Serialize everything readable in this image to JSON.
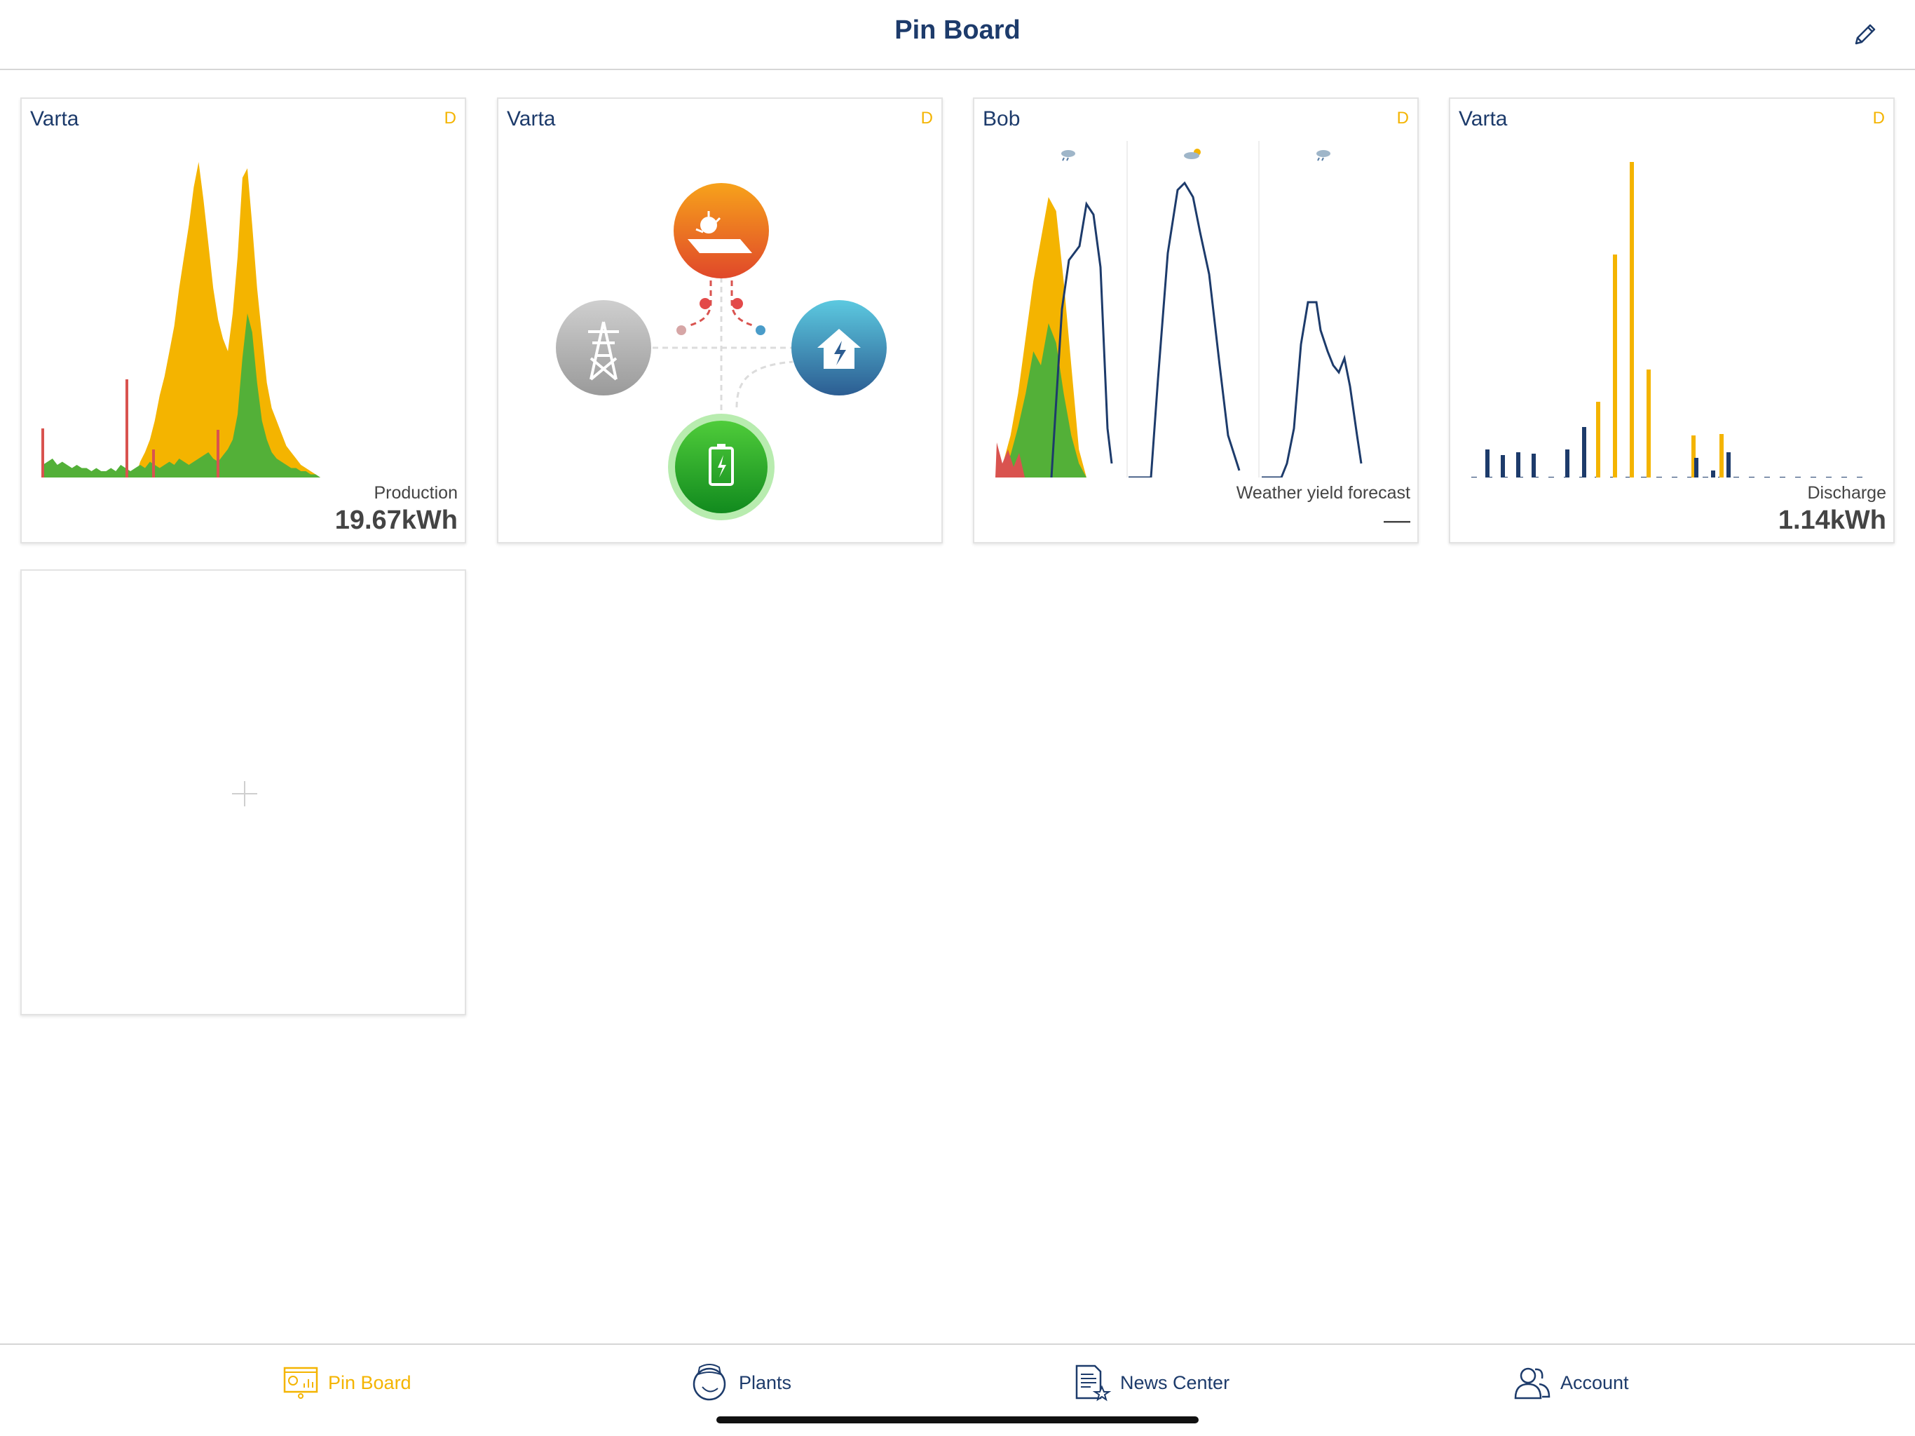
{
  "header": {
    "title": "Pin Board"
  },
  "cards": [
    {
      "title": "Varta",
      "badge": "D",
      "label": "Production",
      "value": "19.67kWh",
      "chart_data": {
        "type": "area",
        "series": [
          {
            "color": "#d9534f",
            "values": [
              2,
              1,
              0,
              0,
              0,
              0,
              0,
              0,
              0,
              0,
              0,
              0,
              0,
              0,
              0,
              0,
              0,
              0,
              0,
              0,
              0,
              0,
              0,
              0,
              0,
              0,
              0,
              0,
              0,
              0,
              0,
              0,
              0,
              0,
              0,
              0,
              0,
              0,
              0,
              0,
              0,
              0,
              0,
              0,
              0,
              0,
              0,
              0,
              0,
              0,
              0,
              0,
              0,
              0,
              0,
              0,
              0,
              0,
              0,
              0
            ]
          },
          {
            "color": "#f4b400",
            "values": [
              0,
              0,
              0,
              0,
              0,
              0,
              0,
              0,
              0,
              0,
              0,
              0,
              0,
              0,
              0,
              0,
              0,
              0,
              0,
              0,
              5,
              8,
              12,
              18,
              26,
              32,
              40,
              48,
              60,
              70,
              80,
              92,
              100,
              88,
              74,
              60,
              50,
              44,
              40,
              52,
              70,
              95,
              98,
              80,
              60,
              45,
              30,
              22,
              18,
              14,
              10,
              8,
              6,
              4,
              3,
              2,
              1,
              0,
              0,
              0
            ]
          },
          {
            "color": "#53b038",
            "values": [
              4,
              5,
              6,
              4,
              5,
              4,
              3,
              4,
              3,
              3,
              2,
              3,
              2,
              2,
              3,
              2,
              4,
              3,
              2,
              3,
              4,
              3,
              5,
              4,
              3,
              4,
              5,
              4,
              6,
              5,
              4,
              5,
              6,
              7,
              8,
              6,
              5,
              7,
              9,
              12,
              20,
              38,
              52,
              46,
              30,
              18,
              12,
              8,
              6,
              5,
              4,
              3,
              3,
              2,
              2,
              1,
              1,
              0,
              0,
              0
            ]
          }
        ]
      }
    },
    {
      "title": "Varta",
      "badge": "D",
      "nodes": {
        "solar": {
          "icon": "solar-panel-icon",
          "color": "#f08a1c"
        },
        "grid": {
          "icon": "power-pylon-icon",
          "color": "#a8a8a8"
        },
        "home": {
          "icon": "home-energy-icon",
          "color": "#3fa7c8"
        },
        "battery": {
          "icon": "battery-icon",
          "color": "#2eaa2e"
        }
      }
    },
    {
      "title": "Bob",
      "badge": "D",
      "label": "Weather yield forecast",
      "value": "—",
      "weather_icons": [
        "cloud-rain-icon",
        "sun-cloud-icon",
        "cloud-rain-icon"
      ],
      "chart_data": {
        "type": "line",
        "series": [
          {
            "color": "#f4b400",
            "values": [
              0,
              5,
              15,
              30,
              50,
              70,
              85,
              100,
              95,
              70,
              40,
              10,
              0
            ]
          },
          {
            "color": "#53b038",
            "values": [
              0,
              3,
              8,
              18,
              30,
              45,
              40,
              55,
              48,
              30,
              15,
              5,
              0
            ]
          },
          {
            "color": "#1d3b6b",
            "values": [
              0,
              0,
              0,
              0,
              10,
              35,
              70,
              95,
              100,
              90,
              70,
              40,
              10,
              0,
              0,
              0,
              0,
              0,
              5,
              30,
              60,
              55,
              40,
              30,
              10,
              0
            ]
          }
        ]
      }
    },
    {
      "title": "Varta",
      "badge": "D",
      "label": "Discharge",
      "value": "1.14kWh",
      "chart_data": {
        "type": "bar",
        "series": [
          {
            "name": "charge",
            "color": "#f4b400",
            "values": [
              0,
              0,
              0,
              0,
              0,
              0,
              0,
              0,
              0,
              0,
              0,
              0,
              0,
              13,
              0,
              0,
              0,
              0,
              0,
              0,
              14,
              0,
              0,
              0,
              0,
              0,
              0,
              0,
              0,
              0
            ]
          },
          {
            "name": "discharge",
            "color": "#1d3b6b",
            "values": [
              9,
              8,
              7,
              7,
              1,
              0,
              0,
              7,
              16,
              0,
              0,
              0,
              0,
              0,
              0,
              0,
              0,
              0,
              0,
              0,
              0,
              0,
              0,
              0,
              0,
              0,
              0,
              0,
              0,
              0
            ]
          }
        ]
      }
    }
  ],
  "tabs": [
    {
      "label": "Pin Board",
      "icon": "pin-board-icon",
      "active": true
    },
    {
      "label": "Plants",
      "icon": "plants-icon",
      "active": false
    },
    {
      "label": "News Center",
      "icon": "news-center-icon",
      "active": false
    },
    {
      "label": "Account",
      "icon": "account-icon",
      "active": false
    }
  ]
}
